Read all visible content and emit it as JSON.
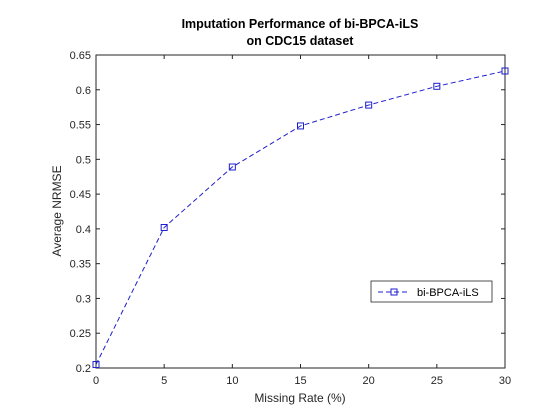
{
  "chart_data": {
    "type": "line",
    "title": [
      "Imputation Performance of bi-BPCA-iLS",
      "on CDC15 dataset"
    ],
    "xlabel": "Missing Rate (%)",
    "ylabel": "Average NRMSE",
    "xlim": [
      0,
      30
    ],
    "ylim": [
      0.2,
      0.65
    ],
    "xticks": [
      0,
      5,
      10,
      15,
      20,
      25,
      30
    ],
    "xtick_labels": [
      "0",
      "5",
      "10",
      "15",
      "20",
      "25",
      "30"
    ],
    "yticks": [
      0.2,
      0.25,
      0.3,
      0.35,
      0.4,
      0.45,
      0.5,
      0.55,
      0.6,
      0.65
    ],
    "ytick_labels": [
      "0.2",
      "0.25",
      "0.3",
      "0.35",
      "0.4",
      "0.45",
      "0.5",
      "0.55",
      "0.6",
      "0.65"
    ],
    "grid": false,
    "legend_position": "right",
    "series": [
      {
        "name": "bi-BPCA-iLS",
        "x": [
          0,
          5,
          10,
          15,
          20,
          25,
          30
        ],
        "y": [
          0.205,
          0.402,
          0.489,
          0.548,
          0.578,
          0.605,
          0.627
        ],
        "color": "#1f1fcf",
        "line_style": "dashed",
        "marker": "square"
      }
    ]
  }
}
